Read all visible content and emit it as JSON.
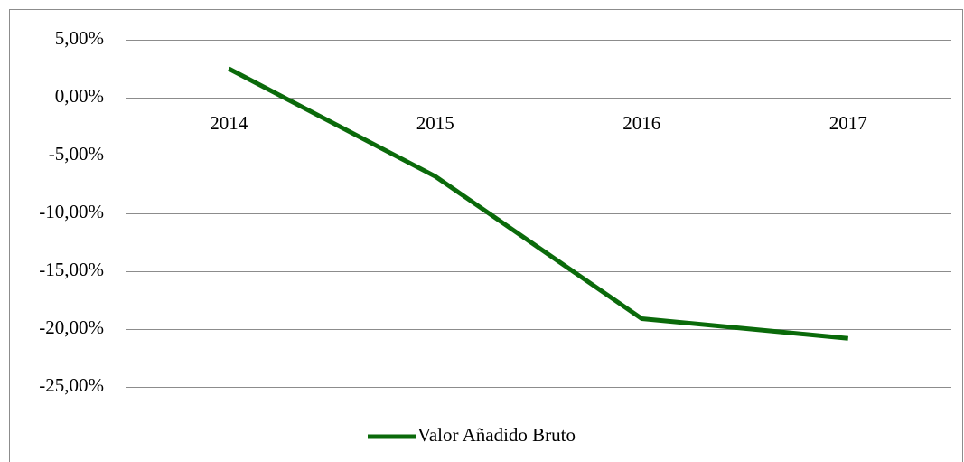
{
  "chart_data": {
    "type": "line",
    "categories": [
      "2014",
      "2015",
      "2016",
      "2017"
    ],
    "series": [
      {
        "name": "Valor Añadido Bruto",
        "color": "#0a6a0a",
        "values": [
          2.5,
          -6.8,
          -19.1,
          -20.8
        ]
      }
    ],
    "ylim": [
      -25,
      5
    ],
    "yticks": [
      {
        "value": -25,
        "label": "-25,00%"
      },
      {
        "value": -20,
        "label": "-20,00%"
      },
      {
        "value": -15,
        "label": "-15,00%"
      },
      {
        "value": -10,
        "label": "-10,00%"
      },
      {
        "value": -5,
        "label": "-5,00%"
      },
      {
        "value": 0,
        "label": "0,00%"
      },
      {
        "value": 5,
        "label": "5,00%"
      }
    ],
    "grid": true,
    "legend": "bottom"
  }
}
